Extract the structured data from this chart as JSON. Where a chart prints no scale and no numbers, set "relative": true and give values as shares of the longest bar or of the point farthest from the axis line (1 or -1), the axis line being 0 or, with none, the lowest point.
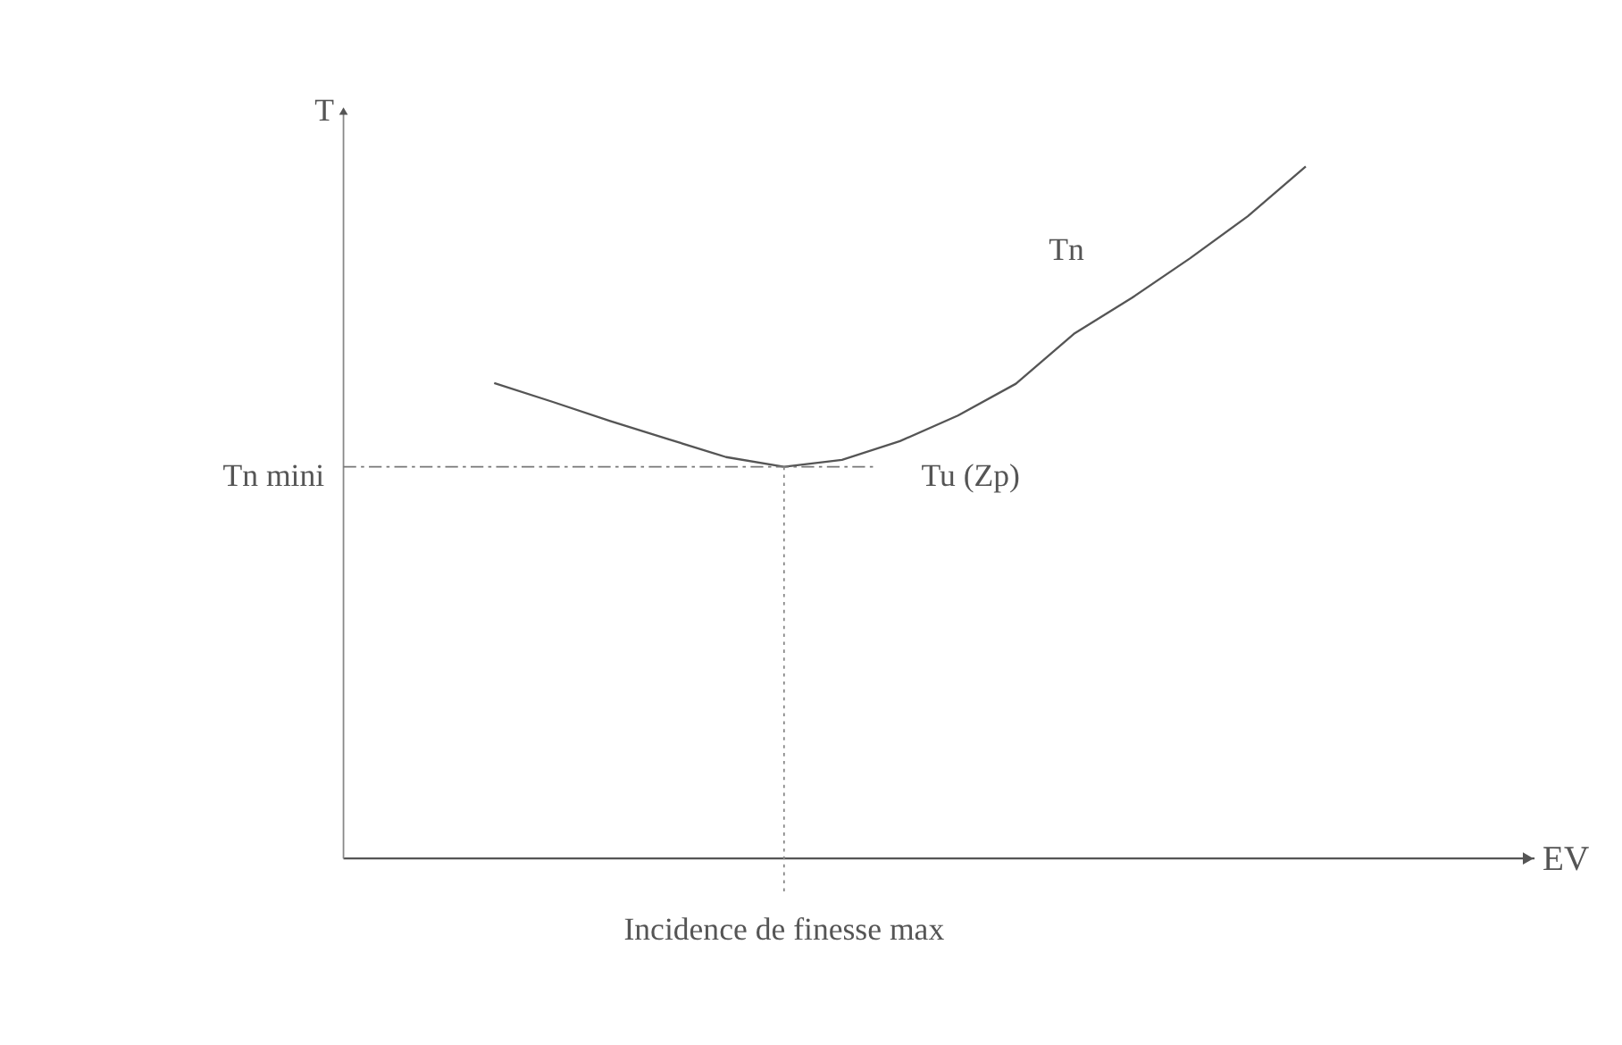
{
  "chart_data": {
    "type": "line",
    "relative": true,
    "ylabel": "T",
    "tick_labels": false,
    "categories": [
      null,
      null,
      null,
      null,
      null,
      null,
      null,
      null,
      null,
      null,
      null,
      null,
      null,
      null,
      null
    ],
    "series": [
      {
        "name": "Tn",
        "color": "#555555",
        "values": [
          0.687,
          0.66,
          0.632,
          0.606,
          0.58,
          0.566,
          0.576,
          0.603,
          0.64,
          0.686,
          0.758,
          0.81,
          0.867,
          0.928,
          1.0
        ]
      }
    ],
    "annotations": [
      "Tn mini",
      "Tu (Zp)",
      "Incidence de finesse max",
      "EV"
    ]
  }
}
